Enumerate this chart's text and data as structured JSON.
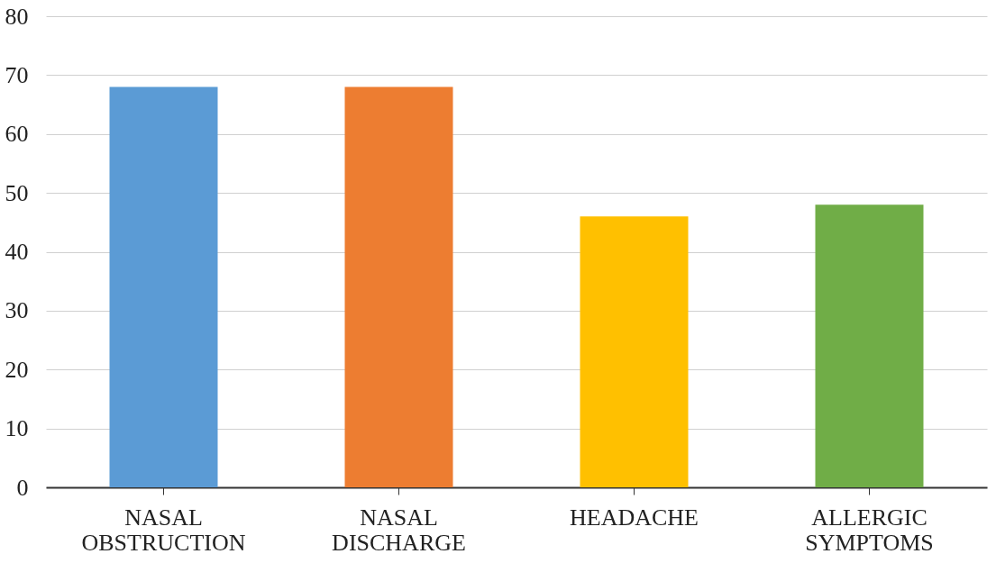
{
  "chart_data": {
    "type": "bar",
    "categories": [
      "NASAL OBSTRUCTION",
      "NASAL DISCHARGE",
      "HEADACHE",
      "ALLERGIC SYMPTOMS"
    ],
    "values": [
      68,
      68,
      46,
      48
    ],
    "colors": [
      "#5b9bd5",
      "#ed7d31",
      "#ffc000",
      "#70ad47"
    ],
    "ylim": [
      0,
      80
    ],
    "yticks": [
      0,
      10,
      20,
      30,
      40,
      50,
      60,
      70,
      80
    ],
    "grid": "y"
  }
}
